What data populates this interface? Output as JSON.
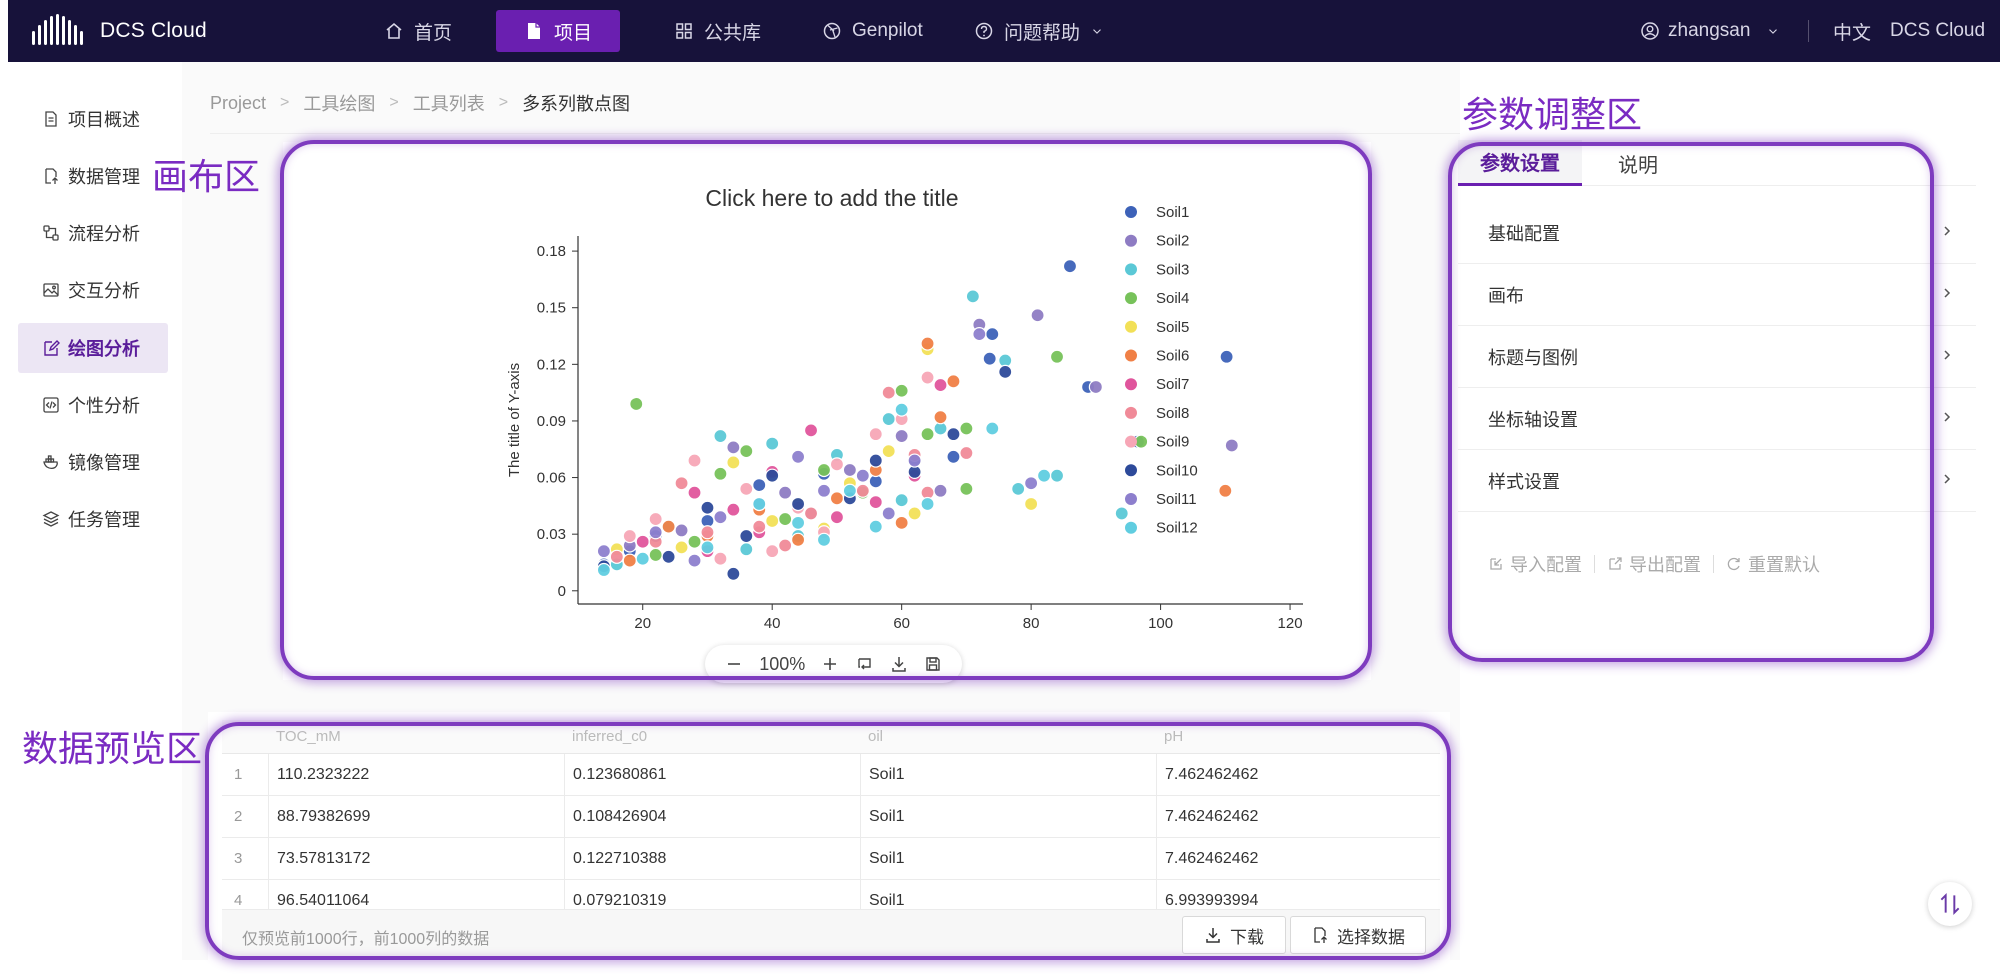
{
  "app": {
    "logo_text": "DCS Cloud"
  },
  "nav": {
    "items": [
      {
        "label": "首页",
        "icon": "home-icon"
      },
      {
        "label": "项目",
        "icon": "document-icon"
      },
      {
        "label": "公共库",
        "icon": "grid-icon"
      },
      {
        "label": "Genpilot",
        "icon": "aperture-icon"
      },
      {
        "label": "问题帮助",
        "icon": "help-icon"
      }
    ],
    "active": "项目",
    "user": "zhangsan",
    "language": "中文",
    "brand": "DCS Cloud"
  },
  "sidebar": {
    "items": [
      {
        "label": "项目概述",
        "icon": "document-icon"
      },
      {
        "label": "数据管理",
        "icon": "file-upload-icon"
      },
      {
        "label": "流程分析",
        "icon": "flow-icon"
      },
      {
        "label": "交互分析",
        "icon": "image-icon"
      },
      {
        "label": "绘图分析",
        "icon": "edit-icon"
      },
      {
        "label": "个性分析",
        "icon": "code-icon"
      },
      {
        "label": "镜像管理",
        "icon": "docker-icon"
      },
      {
        "label": "任务管理",
        "icon": "layers-icon"
      }
    ],
    "active": "绘图分析"
  },
  "breadcrumb": [
    "Project",
    "工具绘图",
    "工具列表",
    "多系列散点图"
  ],
  "zones": {
    "canvas": "画布区",
    "params": "参数调整区",
    "preview": "数据预览区"
  },
  "zoom": {
    "level": "100%"
  },
  "params_panel": {
    "tabs": [
      "参数设置",
      "说明"
    ],
    "active_tab": "参数设置",
    "sections": [
      "基础配置",
      "画布",
      "标题与图例",
      "坐标轴设置",
      "样式设置"
    ],
    "actions": [
      "导入配置",
      "导出配置",
      "重置默认"
    ]
  },
  "table": {
    "columns": [
      "TOC_mM",
      "inferred_c0",
      "oil",
      "pH"
    ],
    "rows": [
      {
        "idx": "1",
        "cells": [
          "110.2323222",
          "0.123680861",
          "Soil1",
          "7.462462462"
        ]
      },
      {
        "idx": "2",
        "cells": [
          "88.79382699",
          "0.108426904",
          "Soil1",
          "7.462462462"
        ]
      },
      {
        "idx": "3",
        "cells": [
          "73.57813172",
          "0.122710388",
          "Soil1",
          "7.462462462"
        ]
      },
      {
        "idx": "4",
        "cells": [
          "96.54011064",
          "0.079210319",
          "Soil1",
          "6.993993994"
        ]
      }
    ],
    "footer_note": "仅预览前1000行，前1000列的数据",
    "download_label": "下载",
    "select_label": "选择数据"
  },
  "chart_data": {
    "type": "scatter",
    "title": "Click here to add the title",
    "xlabel": "",
    "ylabel": "The title of Y-axis",
    "xlim": [
      10,
      122
    ],
    "ylim": [
      -0.007,
      0.188
    ],
    "xticks": [
      20,
      40,
      60,
      80,
      100,
      120
    ],
    "yticks": [
      0,
      0.03,
      0.06,
      0.09,
      0.12,
      0.15,
      0.18
    ],
    "ytick_labels": [
      "0",
      "0.03",
      "0.06",
      "0.09",
      "0.12",
      "0.15",
      "0.18"
    ],
    "grid": false,
    "legend_position": "right",
    "series": [
      {
        "name": "Soil1",
        "color": "#3d62b8",
        "points": [
          [
            110.2,
            0.124
          ],
          [
            88.8,
            0.108
          ],
          [
            73.6,
            0.123
          ],
          [
            96.5,
            0.079
          ],
          [
            86,
            0.172
          ],
          [
            74,
            0.136
          ],
          [
            62,
            0.069
          ],
          [
            48,
            0.062
          ],
          [
            38,
            0.056
          ],
          [
            30,
            0.037
          ],
          [
            18,
            0.021
          ],
          [
            14,
            0.014
          ],
          [
            22,
            0.029
          ],
          [
            56,
            0.058
          ],
          [
            68,
            0.071
          ]
        ]
      },
      {
        "name": "Soil2",
        "color": "#8e7cc3",
        "points": [
          [
            81,
            0.146
          ],
          [
            90,
            0.108
          ],
          [
            111,
            0.077
          ],
          [
            72,
            0.141
          ],
          [
            60,
            0.082
          ],
          [
            52,
            0.064
          ],
          [
            42,
            0.052
          ],
          [
            34,
            0.076
          ],
          [
            26,
            0.032
          ],
          [
            18,
            0.024
          ],
          [
            66,
            0.053
          ],
          [
            46,
            0.041
          ]
        ]
      },
      {
        "name": "Soil3",
        "color": "#5bc8d6",
        "points": [
          [
            71,
            0.156
          ],
          [
            76,
            0.122
          ],
          [
            94,
            0.041
          ],
          [
            84,
            0.061
          ],
          [
            66,
            0.086
          ],
          [
            58,
            0.091
          ],
          [
            50,
            0.072
          ],
          [
            40,
            0.078
          ],
          [
            32,
            0.082
          ],
          [
            24,
            0.034
          ],
          [
            16,
            0.014
          ],
          [
            78,
            0.054
          ],
          [
            60,
            0.048
          ],
          [
            44,
            0.029
          ],
          [
            36,
            0.022
          ]
        ]
      },
      {
        "name": "Soil4",
        "color": "#77c25a",
        "points": [
          [
            19,
            0.099
          ],
          [
            84,
            0.124
          ],
          [
            97,
            0.079
          ],
          [
            70,
            0.086
          ],
          [
            60,
            0.106
          ],
          [
            64,
            0.083
          ],
          [
            48,
            0.064
          ],
          [
            36,
            0.074
          ],
          [
            28,
            0.026
          ],
          [
            22,
            0.019
          ],
          [
            54,
            0.052
          ],
          [
            42,
            0.038
          ],
          [
            32,
            0.062
          ],
          [
            70,
            0.054
          ]
        ]
      },
      {
        "name": "Soil5",
        "color": "#f2e057",
        "points": [
          [
            64,
            0.128
          ],
          [
            58,
            0.074
          ],
          [
            80,
            0.046
          ],
          [
            52,
            0.057
          ],
          [
            44,
            0.046
          ],
          [
            34,
            0.068
          ],
          [
            26,
            0.023
          ],
          [
            16,
            0.022
          ],
          [
            40,
            0.037
          ],
          [
            62,
            0.041
          ],
          [
            48,
            0.033
          ]
        ]
      },
      {
        "name": "Soil6",
        "color": "#f08046",
        "points": [
          [
            64,
            0.131
          ],
          [
            68,
            0.111
          ],
          [
            110,
            0.053
          ],
          [
            66,
            0.092
          ],
          [
            56,
            0.064
          ],
          [
            50,
            0.049
          ],
          [
            38,
            0.043
          ],
          [
            30,
            0.029
          ],
          [
            24,
            0.034
          ],
          [
            18,
            0.016
          ],
          [
            60,
            0.036
          ],
          [
            44,
            0.027
          ]
        ]
      },
      {
        "name": "Soil7",
        "color": "#e0559c",
        "points": [
          [
            66,
            0.109
          ],
          [
            46,
            0.085
          ],
          [
            40,
            0.063
          ],
          [
            34,
            0.043
          ],
          [
            28,
            0.052
          ],
          [
            20,
            0.026
          ],
          [
            56,
            0.047
          ],
          [
            50,
            0.039
          ],
          [
            62,
            0.061
          ],
          [
            30,
            0.021
          ],
          [
            38,
            0.031
          ]
        ]
      },
      {
        "name": "Soil8",
        "color": "#f08a98",
        "points": [
          [
            58,
            0.105
          ],
          [
            62,
            0.072
          ],
          [
            70,
            0.073
          ],
          [
            54,
            0.053
          ],
          [
            46,
            0.041
          ],
          [
            38,
            0.034
          ],
          [
            30,
            0.031
          ],
          [
            22,
            0.026
          ],
          [
            16,
            0.018
          ],
          [
            26,
            0.057
          ],
          [
            42,
            0.024
          ],
          [
            64,
            0.052
          ]
        ]
      },
      {
        "name": "Soil9",
        "color": "#f7a6b6",
        "points": [
          [
            64,
            0.113
          ],
          [
            56,
            0.083
          ],
          [
            50,
            0.067
          ],
          [
            44,
            0.044
          ],
          [
            36,
            0.054
          ],
          [
            28,
            0.069
          ],
          [
            22,
            0.038
          ],
          [
            60,
            0.091
          ],
          [
            48,
            0.031
          ],
          [
            40,
            0.021
          ],
          [
            32,
            0.017
          ],
          [
            18,
            0.029
          ]
        ]
      },
      {
        "name": "Soil10",
        "color": "#2d4a9a",
        "points": [
          [
            76,
            0.116
          ],
          [
            68,
            0.083
          ],
          [
            56,
            0.069
          ],
          [
            52,
            0.049
          ],
          [
            44,
            0.046
          ],
          [
            36,
            0.029
          ],
          [
            30,
            0.044
          ],
          [
            24,
            0.018
          ],
          [
            14,
            0.013
          ],
          [
            40,
            0.061
          ],
          [
            62,
            0.063
          ],
          [
            34,
            0.009
          ]
        ]
      },
      {
        "name": "Soil11",
        "color": "#8d7fcd",
        "points": [
          [
            72,
            0.136
          ],
          [
            80,
            0.057
          ],
          [
            62,
            0.069
          ],
          [
            54,
            0.061
          ],
          [
            48,
            0.053
          ],
          [
            38,
            0.046
          ],
          [
            32,
            0.039
          ],
          [
            22,
            0.031
          ],
          [
            14,
            0.021
          ],
          [
            44,
            0.071
          ],
          [
            28,
            0.016
          ],
          [
            58,
            0.041
          ]
        ]
      },
      {
        "name": "Soil12",
        "color": "#60cde0",
        "points": [
          [
            74,
            0.086
          ],
          [
            82,
            0.061
          ],
          [
            60,
            0.096
          ],
          [
            52,
            0.053
          ],
          [
            44,
            0.036
          ],
          [
            38,
            0.046
          ],
          [
            30,
            0.023
          ],
          [
            20,
            0.017
          ],
          [
            14,
            0.011
          ],
          [
            64,
            0.046
          ],
          [
            48,
            0.027
          ],
          [
            56,
            0.034
          ]
        ]
      }
    ]
  }
}
